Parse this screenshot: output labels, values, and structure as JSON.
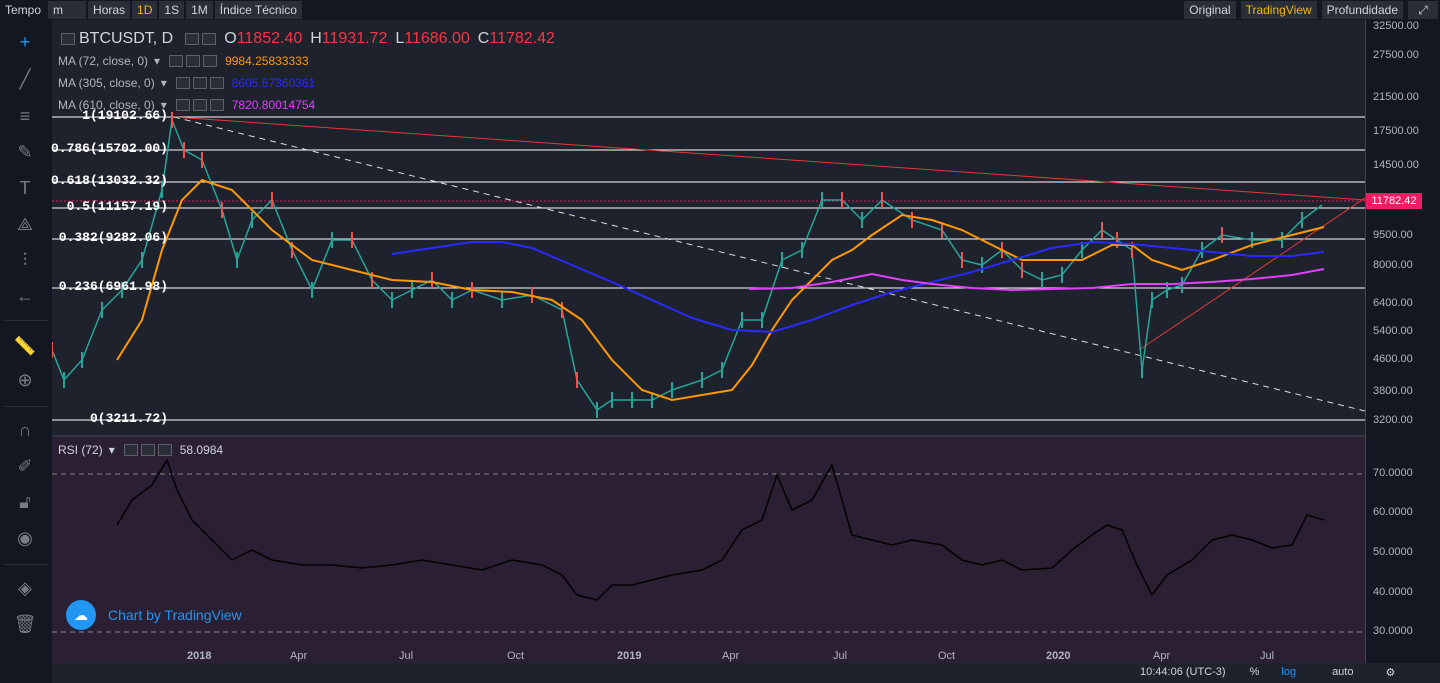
{
  "toolbar": {
    "tempo": "Tempo",
    "unit": "m",
    "horas": "Horas",
    "intervals": [
      "1D",
      "1S",
      "1M"
    ],
    "indicators": "Índice Técnico",
    "views": [
      "Original",
      "TradingView",
      "Profundidade"
    ]
  },
  "legend": {
    "symbol": "BTCUSDT, D",
    "o_label": "O",
    "o": "11852.40",
    "h_label": "H",
    "h": "11931.72",
    "l_label": "L",
    "l": "11686.00",
    "c_label": "C",
    "c": "11782.42",
    "ma": [
      {
        "label": "MA (72, close, 0)",
        "value": "9984.25833333",
        "color": "#ff9800"
      },
      {
        "label": "MA (305, close, 0)",
        "value": "8605.67360361",
        "color": "#2a2aff"
      },
      {
        "label": "MA (610, close, 0)",
        "value": "7820.80014754",
        "color": "#e040fb"
      }
    ]
  },
  "fib": [
    {
      "label": "1(19102.66)",
      "price": 19102.66
    },
    {
      "label": "0.786(15702.00)",
      "price": 15702.0
    },
    {
      "label": "0.618(13032.32)",
      "price": 13032.32
    },
    {
      "label": "0.5(11157.19)",
      "price": 11157.19
    },
    {
      "label": "0.382(9282.06)",
      "price": 9282.06
    },
    {
      "label": "0.236(6961.98)",
      "price": 6961.98
    },
    {
      "label": "0(3211.72)",
      "price": 3211.72
    }
  ],
  "price_axis": [
    "32500.00",
    "27500.00",
    "21500.00",
    "17500.00",
    "14500.00",
    "11782.42",
    "9500.00",
    "8000.00",
    "6400.00",
    "5400.00",
    "4600.00",
    "3800.00",
    "3200.00"
  ],
  "rsi_axis": [
    "70.0000",
    "60.0000",
    "50.0000",
    "40.0000",
    "30.0000"
  ],
  "time_axis": [
    "2018",
    "Apr",
    "Jul",
    "Oct",
    "2019",
    "Apr",
    "Jul",
    "Oct",
    "2020",
    "Apr",
    "Jul"
  ],
  "last_price": "11782.42",
  "rsi": {
    "label": "RSI (72)",
    "value": "58.0984"
  },
  "watermark": "Chart by TradingView",
  "status": {
    "time": "10:44:06 (UTC-3)",
    "percent": "%",
    "log": "log",
    "auto": "auto"
  }
}
